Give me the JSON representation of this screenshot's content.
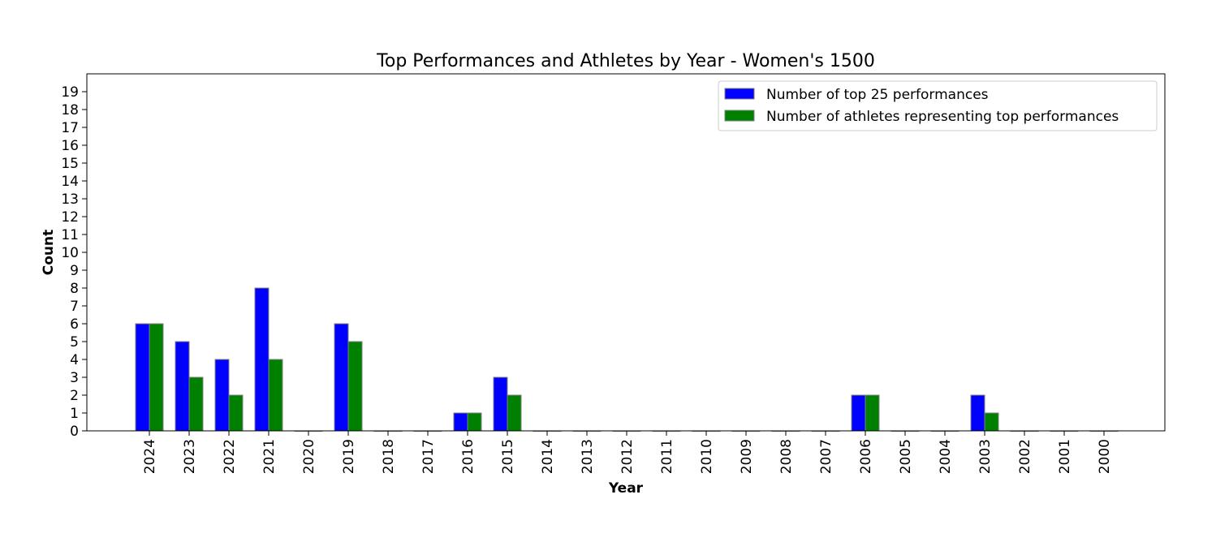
{
  "chart_data": {
    "type": "bar",
    "title": "Top Performances and Athletes by Year - Women's 1500",
    "xlabel": "Year",
    "ylabel": "Count",
    "categories": [
      "2024",
      "2023",
      "2022",
      "2021",
      "2020",
      "2019",
      "2018",
      "2017",
      "2016",
      "2015",
      "2014",
      "2013",
      "2012",
      "2011",
      "2010",
      "2009",
      "2008",
      "2007",
      "2006",
      "2005",
      "2004",
      "2003",
      "2002",
      "2001",
      "2000"
    ],
    "series": [
      {
        "name": "Number of top 25 performances",
        "color": "#0000ff",
        "values": [
          6,
          5,
          4,
          8,
          0,
          6,
          0,
          0,
          1,
          3,
          0,
          0,
          0,
          0,
          0,
          0,
          0,
          0,
          2,
          0,
          0,
          2,
          0,
          0,
          0
        ]
      },
      {
        "name": "Number of athletes representing top performances",
        "color": "#008000",
        "values": [
          6,
          3,
          2,
          4,
          0,
          5,
          0,
          0,
          1,
          2,
          0,
          0,
          0,
          0,
          0,
          0,
          0,
          0,
          2,
          0,
          0,
          1,
          0,
          0,
          0
        ]
      }
    ],
    "ylim": [
      0,
      20
    ],
    "yticks": [
      0,
      1,
      2,
      3,
      4,
      5,
      6,
      7,
      8,
      9,
      10,
      11,
      12,
      13,
      14,
      15,
      16,
      17,
      18,
      19
    ],
    "legend": "top-right",
    "grid": false
  }
}
